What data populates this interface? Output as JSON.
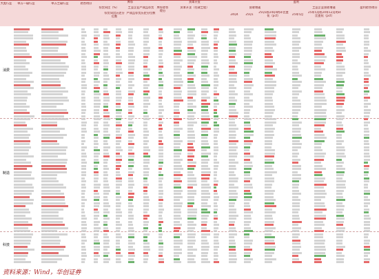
{
  "header": {
    "level1_industry": "大类行业",
    "level2_industry": "申万一级行业",
    "level3_industry": "申万三级行业",
    "composite_score": "综合得分",
    "inventory": "库存",
    "inventory_yoy": "存货同比（%）",
    "inventory_percentile": "存货同比历史分位数",
    "finished_goods": "工业企业产成品存货",
    "finished_goods_percentile": "产成品存货历史分位数",
    "inventory_score": "库存综合得分",
    "capital_expenditure": "资本开支",
    "capex_label": "资本开支（在建工程）",
    "profit": "盈利",
    "revenue_growth": "营收增速",
    "industrial_profit": "工业企业营收增速",
    "profit_score": "盈利综合得分",
    "col_2024q4": "24Q4",
    "col_2025q1": "25Q1",
    "col_25q1_24q4_change": "25Q1较24Q4的环比变化（pct）",
    "col_25m5": "25年5月",
    "col_25m5_24m12_change": "25年5月较24年12月的环比变化（pct）"
  },
  "groups": [
    "消费",
    "制造",
    "科技"
  ],
  "source_note": "资料来源：Wind，华创证券",
  "colors": {
    "accent": "#b94a4a",
    "header_bg": "#f5d9d9",
    "positive": "#e66a6a",
    "negative": "#6fb36f"
  }
}
